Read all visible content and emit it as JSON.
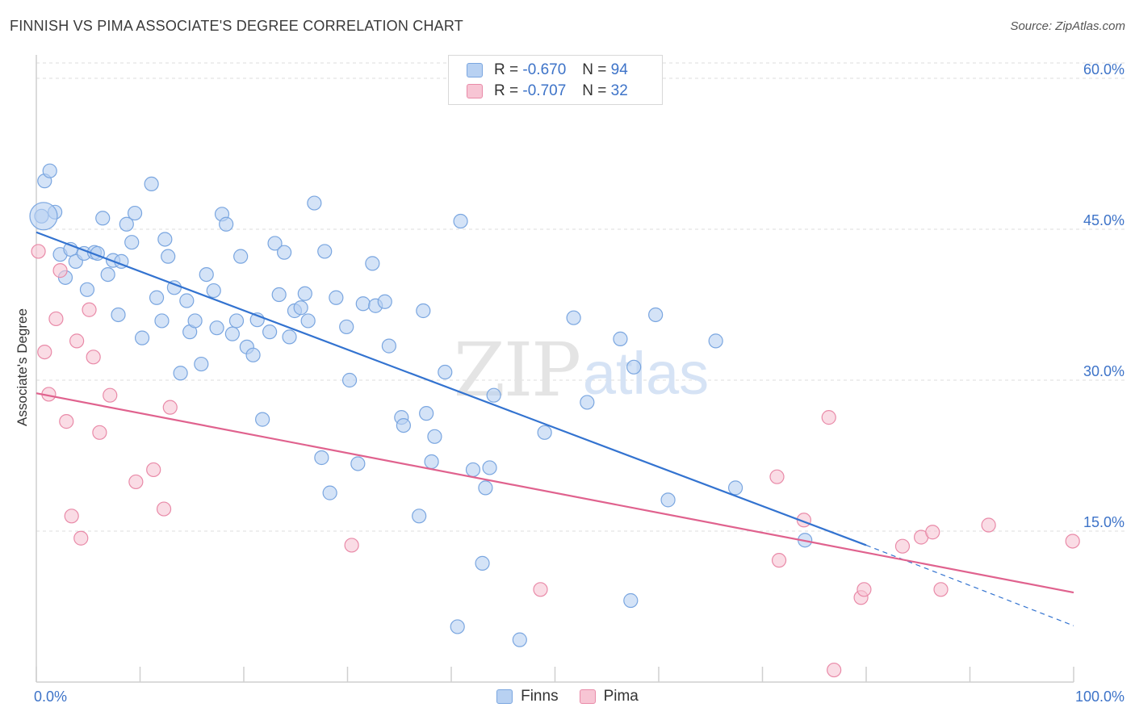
{
  "title": "FINNISH VS PIMA ASSOCIATE'S DEGREE CORRELATION CHART",
  "source": "Source: ZipAtlas.com",
  "legend_top": [
    {
      "r_label": "R =",
      "r_value": "-0.670",
      "n_label": "N =",
      "n_value": "94"
    },
    {
      "r_label": "R =",
      "r_value": "-0.707",
      "n_label": "N =",
      "n_value": "32"
    }
  ],
  "colors": {
    "finns_fill": "#b8d1f2",
    "finns_stroke": "#7aa6e0",
    "finns_line": "#3373d0",
    "pima_fill": "#f7c5d4",
    "pima_stroke": "#e98aa8",
    "pima_line": "#e0628e",
    "tick_label": "#3d73c8",
    "grid": "#dddddd"
  },
  "chart_data": {
    "type": "scatter",
    "title": "FINNISH VS PIMA ASSOCIATE'S DEGREE CORRELATION CHART",
    "xlabel": "",
    "ylabel": "Associate's Degree",
    "xlim": [
      0,
      100
    ],
    "ylim": [
      0,
      60
    ],
    "x_tick_labels": [
      "0.0%",
      "100.0%"
    ],
    "y_ticks": [
      15,
      30,
      45,
      60
    ],
    "y_tick_labels": [
      "15.0%",
      "30.0%",
      "45.0%",
      "60.0%"
    ],
    "grid": true,
    "legend_position": "bottom-center",
    "watermark": "ZIPatlas",
    "series": [
      {
        "name": "Finns",
        "r": -0.67,
        "n": 94,
        "trend": {
          "x0": 0,
          "y0": 44.7,
          "x1": 80,
          "y1": 13.6,
          "dashed_to_x": 100,
          "dashed_to_y": 5.6
        },
        "points": [
          [
            0.5,
            46.3
          ],
          [
            0.8,
            49.8
          ],
          [
            1.3,
            50.8
          ],
          [
            1.8,
            46.7
          ],
          [
            2.3,
            42.5
          ],
          [
            2.8,
            40.2
          ],
          [
            3.3,
            43.0
          ],
          [
            3.8,
            41.8
          ],
          [
            4.6,
            42.6
          ],
          [
            4.9,
            39.0
          ],
          [
            5.6,
            42.7
          ],
          [
            5.9,
            42.6
          ],
          [
            6.4,
            46.1
          ],
          [
            6.9,
            40.5
          ],
          [
            7.4,
            41.9
          ],
          [
            7.9,
            36.5
          ],
          [
            8.2,
            41.8
          ],
          [
            8.7,
            45.5
          ],
          [
            9.2,
            43.7
          ],
          [
            9.5,
            46.6
          ],
          [
            10.2,
            34.2
          ],
          [
            11.1,
            49.5
          ],
          [
            11.6,
            38.2
          ],
          [
            12.1,
            35.9
          ],
          [
            12.4,
            44.0
          ],
          [
            12.7,
            42.3
          ],
          [
            13.3,
            39.2
          ],
          [
            13.9,
            30.7
          ],
          [
            14.5,
            37.9
          ],
          [
            14.8,
            34.8
          ],
          [
            15.3,
            35.9
          ],
          [
            15.9,
            31.6
          ],
          [
            16.4,
            40.5
          ],
          [
            17.1,
            38.9
          ],
          [
            17.4,
            35.2
          ],
          [
            17.9,
            46.5
          ],
          [
            18.3,
            45.5
          ],
          [
            18.9,
            34.6
          ],
          [
            19.3,
            35.9
          ],
          [
            19.7,
            42.3
          ],
          [
            20.3,
            33.3
          ],
          [
            20.9,
            32.5
          ],
          [
            21.3,
            36.0
          ],
          [
            21.8,
            26.1
          ],
          [
            22.5,
            34.8
          ],
          [
            23.0,
            43.6
          ],
          [
            23.4,
            38.5
          ],
          [
            23.9,
            42.7
          ],
          [
            24.4,
            34.3
          ],
          [
            24.9,
            36.9
          ],
          [
            25.5,
            37.2
          ],
          [
            25.9,
            38.6
          ],
          [
            26.2,
            35.9
          ],
          [
            26.8,
            47.6
          ],
          [
            27.5,
            22.3
          ],
          [
            27.8,
            42.8
          ],
          [
            28.3,
            18.8
          ],
          [
            28.9,
            38.2
          ],
          [
            29.9,
            35.3
          ],
          [
            30.2,
            30.0
          ],
          [
            31.0,
            21.7
          ],
          [
            31.5,
            37.6
          ],
          [
            32.4,
            41.6
          ],
          [
            32.7,
            37.4
          ],
          [
            33.6,
            37.8
          ],
          [
            34.0,
            33.4
          ],
          [
            35.2,
            26.3
          ],
          [
            35.4,
            25.5
          ],
          [
            36.9,
            16.5
          ],
          [
            37.3,
            36.9
          ],
          [
            37.6,
            26.7
          ],
          [
            38.1,
            21.9
          ],
          [
            38.4,
            24.4
          ],
          [
            39.4,
            30.8
          ],
          [
            40.6,
            5.5
          ],
          [
            40.9,
            45.8
          ],
          [
            42.1,
            21.1
          ],
          [
            43.0,
            11.8
          ],
          [
            43.3,
            19.3
          ],
          [
            43.7,
            21.3
          ],
          [
            44.1,
            28.5
          ],
          [
            46.6,
            4.2
          ],
          [
            49.0,
            24.8
          ],
          [
            51.8,
            36.2
          ],
          [
            53.1,
            27.8
          ],
          [
            56.3,
            34.1
          ],
          [
            57.3,
            8.1
          ],
          [
            57.6,
            31.3
          ],
          [
            59.7,
            36.5
          ],
          [
            60.9,
            18.1
          ],
          [
            65.5,
            33.9
          ],
          [
            67.4,
            19.3
          ],
          [
            74.1,
            14.1
          ],
          [
            0.7,
            46.3
          ]
        ]
      },
      {
        "name": "Pima",
        "r": -0.707,
        "n": 32,
        "trend": {
          "x0": 0,
          "y0": 28.7,
          "x1": 100,
          "y1": 8.9
        },
        "points": [
          [
            0.2,
            42.8
          ],
          [
            0.8,
            32.8
          ],
          [
            1.2,
            28.6
          ],
          [
            2.3,
            40.9
          ],
          [
            1.9,
            36.1
          ],
          [
            2.9,
            25.9
          ],
          [
            3.4,
            16.5
          ],
          [
            3.9,
            33.9
          ],
          [
            4.3,
            14.3
          ],
          [
            5.1,
            37.0
          ],
          [
            5.5,
            32.3
          ],
          [
            6.1,
            24.8
          ],
          [
            7.1,
            28.5
          ],
          [
            9.6,
            19.9
          ],
          [
            11.3,
            21.1
          ],
          [
            12.3,
            17.2
          ],
          [
            12.9,
            27.3
          ],
          [
            30.4,
            13.6
          ],
          [
            48.6,
            9.2
          ],
          [
            71.4,
            20.4
          ],
          [
            71.6,
            12.1
          ],
          [
            74.0,
            16.1
          ],
          [
            76.4,
            26.3
          ],
          [
            76.9,
            1.2
          ],
          [
            79.5,
            8.4
          ],
          [
            79.8,
            9.2
          ],
          [
            83.5,
            13.5
          ],
          [
            85.3,
            14.4
          ],
          [
            86.4,
            14.9
          ],
          [
            87.2,
            9.2
          ],
          [
            91.8,
            15.6
          ],
          [
            99.9,
            14.0
          ]
        ]
      }
    ]
  },
  "bottom_legend": [
    "Finns",
    "Pima"
  ]
}
